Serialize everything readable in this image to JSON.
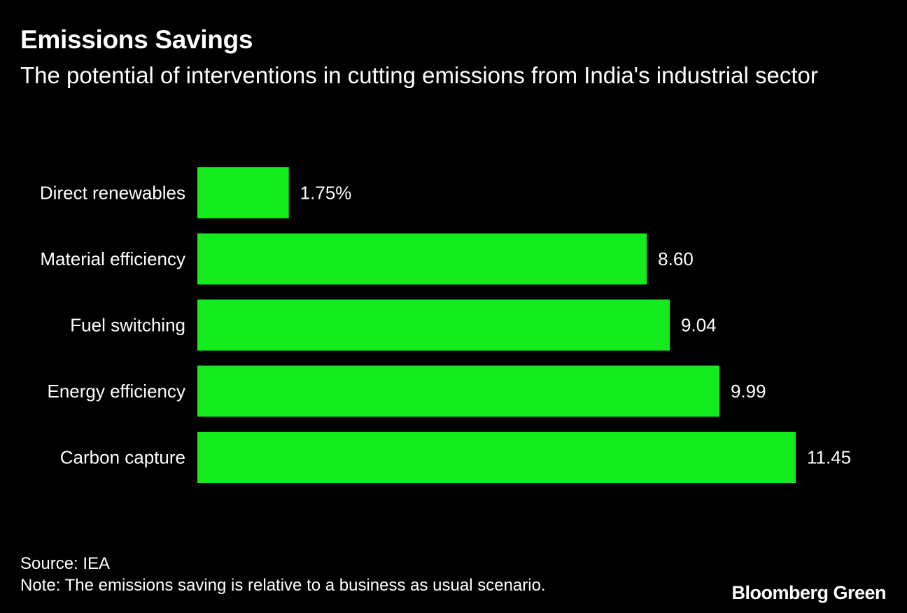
{
  "chart_data": {
    "type": "bar",
    "orientation": "horizontal",
    "title": "Emissions Savings",
    "subtitle": "The potential of interventions in cutting emissions from India's industrial sector",
    "categories": [
      "Direct renewables",
      "Material efficiency",
      "Fuel switching",
      "Energy efficiency",
      "Carbon capture"
    ],
    "values": [
      1.75,
      8.6,
      9.04,
      9.99,
      11.45
    ],
    "value_labels": [
      "1.75%",
      "8.60",
      "9.04",
      "9.99",
      "11.45"
    ],
    "unit": "%",
    "xlim": [
      0,
      11.45
    ],
    "bar_color": "#13eb1d",
    "grid": false
  },
  "footer": {
    "source": "Source: IEA",
    "note": "Note: The emissions saving is relative to a business as usual scenario."
  },
  "brand": "Bloomberg Green",
  "colors": {
    "background": "#000000",
    "text": "#ffffff",
    "bar": "#13eb1d"
  }
}
